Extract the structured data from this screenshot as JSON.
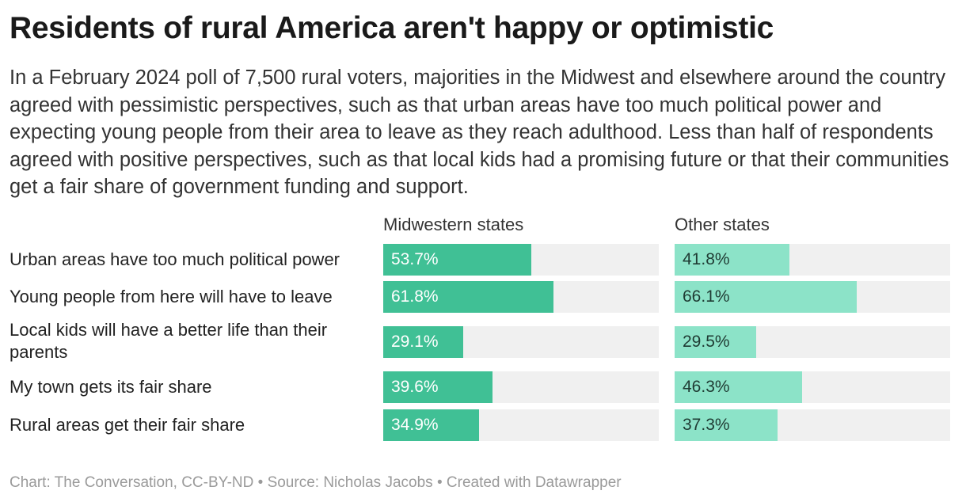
{
  "header": {
    "title": "Residents of rural America aren't happy or optimistic",
    "description": "In a February 2024 poll of 7,500 rural voters, majorities in the Midwest and elsewhere around the country agreed with pessimistic perspectives, such as that urban areas have too much political power and expecting young people from their area to leave as they reach adulthood. Less than half of respondents agreed with positive perspectives, such as that local kids had a promising future or that their communities get a fair share of government funding and support."
  },
  "chart_data": {
    "type": "bar",
    "orientation": "horizontal",
    "categories": [
      "Urban areas have too much political power",
      "Young people from here will have to leave",
      "Local kids will have a better life than their parents",
      "My town gets its fair share",
      "Rural areas get their fair share"
    ],
    "series": [
      {
        "name": "Midwestern states",
        "values": [
          53.7,
          61.8,
          29.1,
          39.6,
          34.9
        ],
        "labels": [
          "53.7%",
          "61.8%",
          "29.1%",
          "39.6%",
          "34.9%"
        ],
        "color": "#40c095",
        "label_color": "#ffffff"
      },
      {
        "name": "Other states",
        "values": [
          41.8,
          66.1,
          29.5,
          46.3,
          37.3
        ],
        "labels": [
          "41.8%",
          "66.1%",
          "29.5%",
          "46.3%",
          "37.3%"
        ],
        "color": "#8ce3c8",
        "label_color": "#1f3b33"
      }
    ],
    "xlim": [
      0,
      100
    ],
    "track_color": "#f0f0f0",
    "grid": false,
    "legend": "none"
  },
  "footer": {
    "chart_credit": "Chart: The Conversation, CC-BY-ND",
    "separator": " • ",
    "source": "Source: Nicholas Jacobs",
    "created_with": "Created with Datawrapper"
  }
}
